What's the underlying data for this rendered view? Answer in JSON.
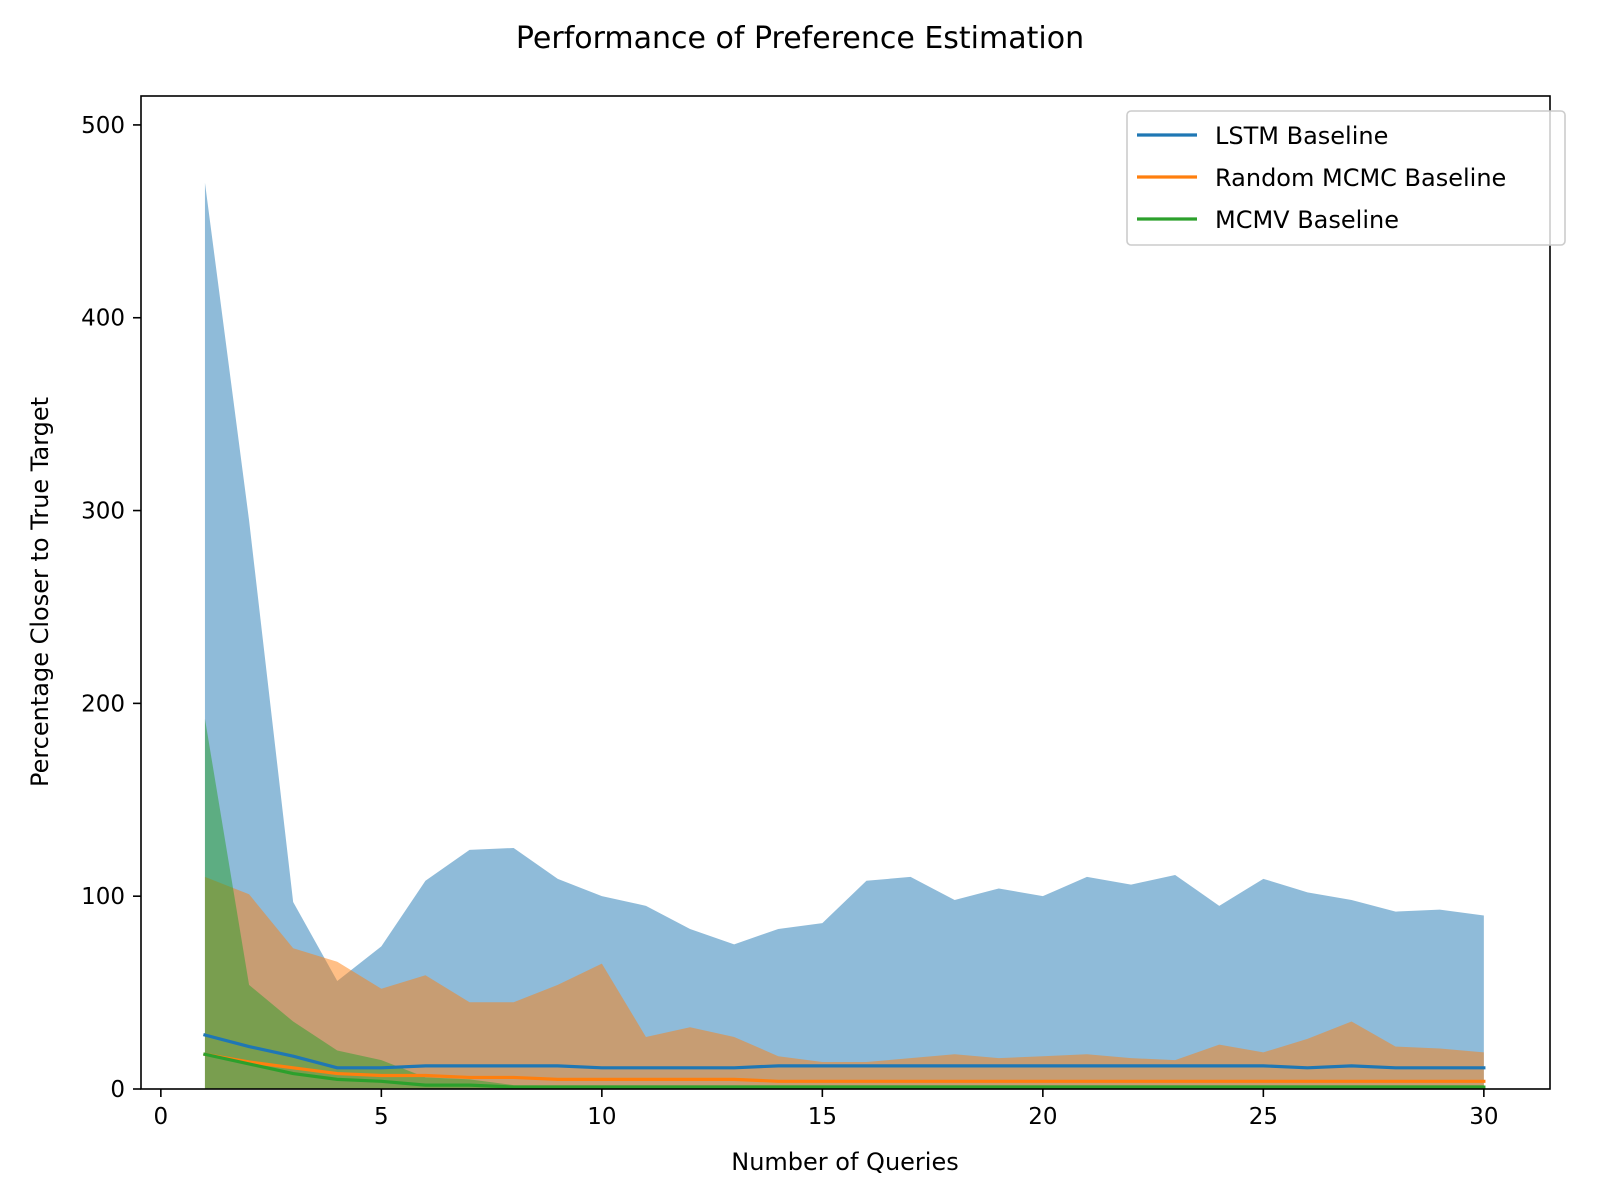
{
  "chart_data": {
    "type": "line",
    "title": "Performance of Preference Estimation",
    "xlabel": "Number of Queries",
    "ylabel": "Percentage Closer to True Target",
    "xlim": [
      -0.45,
      31.5
    ],
    "ylim": [
      0,
      515
    ],
    "xticks": [
      0,
      5,
      10,
      15,
      20,
      25,
      30
    ],
    "yticks": [
      0,
      100,
      200,
      300,
      400,
      500
    ],
    "legend_position": "top-right",
    "x": [
      1,
      2,
      3,
      4,
      5,
      6,
      7,
      8,
      9,
      10,
      11,
      12,
      13,
      14,
      15,
      16,
      17,
      18,
      19,
      20,
      21,
      22,
      23,
      24,
      25,
      26,
      27,
      28,
      29,
      30
    ],
    "series": [
      {
        "name": "LSTM Baseline",
        "color": "#1f77b4",
        "mean": [
          28,
          22,
          17,
          11,
          11,
          12,
          12,
          12,
          12,
          11,
          11,
          11,
          11,
          12,
          12,
          12,
          12,
          12,
          12,
          12,
          12,
          12,
          12,
          12,
          12,
          11,
          12,
          11,
          11,
          11
        ],
        "lower": [
          0,
          0,
          0,
          0,
          0,
          0,
          0,
          0,
          0,
          0,
          0,
          0,
          0,
          0,
          0,
          0,
          0,
          0,
          0,
          0,
          0,
          0,
          0,
          0,
          0,
          0,
          0,
          0,
          0,
          0
        ],
        "upper": [
          470,
          295,
          97,
          56,
          74,
          108,
          124,
          125,
          109,
          100,
          95,
          83,
          75,
          83,
          86,
          108,
          110,
          98,
          104,
          100,
          110,
          106,
          111,
          95,
          109,
          102,
          98,
          92,
          93,
          90
        ]
      },
      {
        "name": "Random MCMC Baseline",
        "color": "#ff7f0e",
        "mean": [
          18,
          14,
          11,
          8,
          7,
          7,
          6,
          6,
          5,
          5,
          5,
          5,
          5,
          4,
          4,
          4,
          4,
          4,
          4,
          4,
          4,
          4,
          4,
          4,
          4,
          4,
          4,
          4,
          4,
          4
        ],
        "lower": [
          0,
          0,
          0,
          0,
          0,
          0,
          0,
          0,
          0,
          0,
          0,
          0,
          0,
          0,
          0,
          0,
          0,
          0,
          0,
          0,
          0,
          0,
          0,
          0,
          0,
          0,
          0,
          0,
          0,
          0
        ],
        "upper": [
          110,
          101,
          73,
          66,
          52,
          59,
          45,
          45,
          54,
          65,
          27,
          32,
          27,
          17,
          14,
          14,
          16,
          18,
          16,
          17,
          18,
          16,
          15,
          23,
          19,
          26,
          35,
          22,
          21,
          19
        ]
      },
      {
        "name": "MCMV Baseline",
        "color": "#2ca02c",
        "mean": [
          18,
          13,
          8,
          5,
          4,
          2,
          2,
          1,
          1,
          1,
          1,
          1,
          1,
          1,
          1,
          1,
          1,
          1,
          1,
          1,
          1,
          1,
          1,
          1,
          1,
          1,
          1,
          1,
          1,
          1
        ],
        "lower": [
          0,
          0,
          0,
          0,
          0,
          0,
          0,
          0,
          0,
          0,
          0,
          0,
          0,
          0,
          0,
          0,
          0,
          0,
          0,
          0,
          0,
          0,
          0,
          0,
          0,
          0,
          0,
          0,
          0,
          0
        ],
        "upper": [
          192,
          54,
          35,
          20,
          15,
          6,
          5,
          2,
          2,
          2,
          2,
          2,
          2,
          2,
          2,
          2,
          2,
          2,
          2,
          2,
          2,
          2,
          2,
          2,
          2,
          2,
          2,
          2,
          2,
          2
        ]
      }
    ]
  }
}
